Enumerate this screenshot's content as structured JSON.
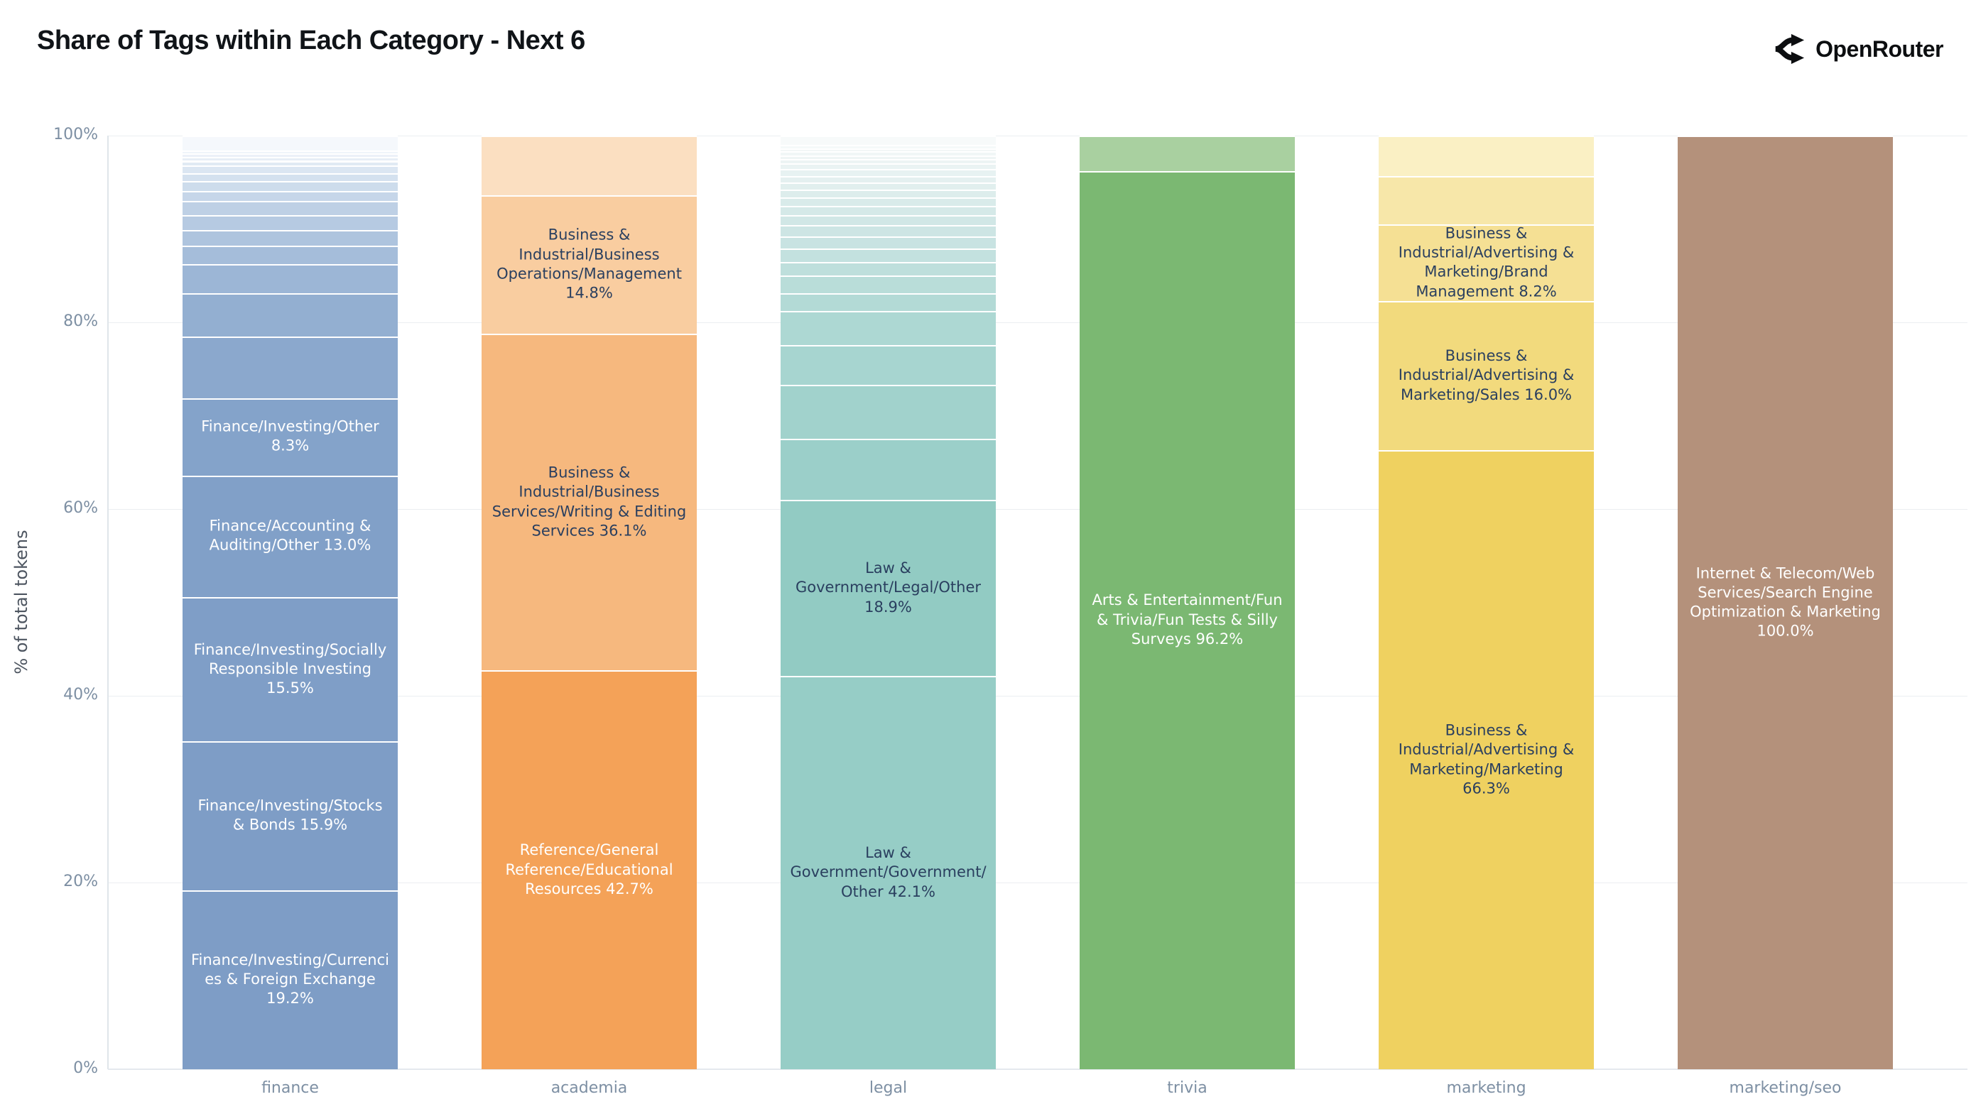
{
  "title": "Share of Tags within Each Category - Next 6",
  "logo": {
    "text": "OpenRouter",
    "icon": "openrouter-fork-icon"
  },
  "axis": {
    "y_label": "% of total tokens",
    "x_categories": [
      "finance",
      "academia",
      "legal",
      "trivia",
      "marketing",
      "marketing/seo"
    ]
  },
  "colors": {
    "background": "#ffffff",
    "grid": "#ebeef1",
    "tick_text": "#7d8fa3",
    "dark_label_text": "#2a3f5f",
    "light_label_text": "#ffffff",
    "finance_base": "#7E9DC6",
    "academia_base": "#F4A258",
    "legal_base": "#96CDC6",
    "trivia_base": "#7BB872",
    "marketing_base": "#EFD160",
    "marketing_seo_base": "#B4917B"
  },
  "chart_data": {
    "type": "bar",
    "stacked": true,
    "normalized": "percent",
    "title": "Share of Tags within Each Category - Next 6",
    "xlabel": "",
    "ylabel": "% of total tokens",
    "ylim": [
      0,
      100
    ],
    "grid": true,
    "legend": "none",
    "y_ticks": {
      "values": [
        0,
        20,
        40,
        60,
        80,
        100
      ],
      "labels": [
        "0%",
        "20%",
        "40%",
        "60%",
        "80%",
        "100%"
      ]
    },
    "categories": [
      "finance",
      "academia",
      "legal",
      "trivia",
      "marketing",
      "marketing/seo"
    ],
    "bars": [
      {
        "category": "finance",
        "segments": [
          {
            "value": 19.2,
            "label": "Finance/Investing/Currencies & Foreign Exchange 19.2%",
            "color": "#7E9DC6",
            "text_color": "#ffffff"
          },
          {
            "value": 15.9,
            "label": "Finance/Investing/Stocks & Bonds 15.9%",
            "color": "#7E9DC6",
            "text_color": "#ffffff"
          },
          {
            "value": 15.5,
            "label": "Finance/Investing/Socially Responsible Investing 15.5%",
            "color": "#7F9EC7",
            "text_color": "#ffffff"
          },
          {
            "value": 13.0,
            "label": "Finance/Accounting & Auditing/Other 13.0%",
            "color": "#81A0C8",
            "text_color": "#ffffff"
          },
          {
            "value": 8.3,
            "label": "Finance/Investing/Other 8.3%",
            "color": "#84A3CA",
            "text_color": "#ffffff"
          },
          {
            "value": 6.6,
            "label": "",
            "color": "#8BA8CD"
          },
          {
            "value": 4.6,
            "label": "",
            "color": "#93AFD1"
          },
          {
            "value": 3.1,
            "label": "",
            "color": "#9CB6D6"
          },
          {
            "value": 2.0,
            "label": "",
            "color": "#A5BDDA"
          },
          {
            "value": 1.7,
            "label": "",
            "color": "#AEC4DE"
          },
          {
            "value": 1.6,
            "label": "",
            "color": "#B6CAE2"
          },
          {
            "value": 1.5,
            "label": "",
            "color": "#BED0E5"
          },
          {
            "value": 1.1,
            "label": "",
            "color": "#C6D6E9"
          },
          {
            "value": 1.0,
            "label": "",
            "color": "#CDDCEC"
          },
          {
            "value": 0.9,
            "label": "",
            "color": "#D4E1EF"
          },
          {
            "value": 0.8,
            "label": "",
            "color": "#DBE6F2"
          },
          {
            "value": 0.5,
            "label": "",
            "color": "#E1EAF4"
          },
          {
            "value": 0.4,
            "label": "",
            "color": "#E7EEF6"
          },
          {
            "value": 0.4,
            "label": "",
            "color": "#ECF1F8"
          },
          {
            "value": 0.3,
            "label": "",
            "color": "#F0F4FA"
          },
          {
            "value": 1.6,
            "label": "",
            "color": "#F5F8FC"
          }
        ]
      },
      {
        "category": "academia",
        "segments": [
          {
            "value": 42.7,
            "label": "Reference/General Reference/Educational Resources 42.7%",
            "color": "#F4A258",
            "text_color": "#ffffff"
          },
          {
            "value": 36.1,
            "label": "Business & Industrial/Business Services/Writing & Editing Services 36.1%",
            "color": "#F6B87E",
            "text_color": "#2a3f5f"
          },
          {
            "value": 14.8,
            "label": "Business & Industrial/Business Operations/Management 14.8%",
            "color": "#F9CDA0",
            "text_color": "#2a3f5f"
          },
          {
            "value": 6.4,
            "label": "",
            "color": "#FBDFC1"
          }
        ]
      },
      {
        "category": "legal",
        "segments": [
          {
            "value": 42.1,
            "label": "Law & Government/Government/Other 42.1%",
            "color": "#96CDC6",
            "text_color": "#2a3f5f"
          },
          {
            "value": 18.9,
            "label": "Law & Government/Legal/Other 18.9%",
            "color": "#92CBC3",
            "text_color": "#2a3f5f"
          },
          {
            "value": 6.5,
            "label": "",
            "color": "#9BCFC9"
          },
          {
            "value": 5.8,
            "label": "",
            "color": "#A1D2CC"
          },
          {
            "value": 4.3,
            "label": "",
            "color": "#A7D5D0"
          },
          {
            "value": 3.6,
            "label": "",
            "color": "#ADD8D3"
          },
          {
            "value": 1.9,
            "label": "",
            "color": "#B3DAD6"
          },
          {
            "value": 1.9,
            "label": "",
            "color": "#B9DDD9"
          },
          {
            "value": 1.5,
            "label": "",
            "color": "#BEDFDC"
          },
          {
            "value": 1.4,
            "label": "",
            "color": "#C3E1DF"
          },
          {
            "value": 1.3,
            "label": "",
            "color": "#C8E3E2"
          },
          {
            "value": 1.2,
            "label": "",
            "color": "#CDE5E4"
          },
          {
            "value": 1.1,
            "label": "",
            "color": "#D1E7E6"
          },
          {
            "value": 1.0,
            "label": "",
            "color": "#D5E9E8"
          },
          {
            "value": 0.9,
            "label": "",
            "color": "#D9EBEA"
          },
          {
            "value": 0.8,
            "label": "",
            "color": "#DDEDEC"
          },
          {
            "value": 0.8,
            "label": "",
            "color": "#E1EFEE"
          },
          {
            "value": 0.7,
            "label": "",
            "color": "#E4F0F0"
          },
          {
            "value": 0.7,
            "label": "",
            "color": "#E7F2F2"
          },
          {
            "value": 0.6,
            "label": "",
            "color": "#EAF3F3"
          },
          {
            "value": 0.5,
            "label": "",
            "color": "#EDF4F4"
          },
          {
            "value": 0.4,
            "label": "",
            "color": "#EFF5F5"
          },
          {
            "value": 0.4,
            "label": "",
            "color": "#F1F6F6"
          },
          {
            "value": 0.35,
            "label": "",
            "color": "#F3F7F7"
          },
          {
            "value": 0.35,
            "label": "",
            "color": "#F5F9F9"
          },
          {
            "value": 1.0,
            "label": "",
            "color": "#F7FAFA"
          }
        ]
      },
      {
        "category": "trivia",
        "segments": [
          {
            "value": 96.2,
            "label": "Arts & Entertainment/Fun & Trivia/Fun Tests & Silly Surveys 96.2%",
            "color": "#7BB872",
            "text_color": "#ffffff"
          },
          {
            "value": 3.8,
            "label": "",
            "color": "#A9D0A0"
          }
        ]
      },
      {
        "category": "marketing",
        "segments": [
          {
            "value": 66.3,
            "label": "Business & Industrial/Advertising & Marketing/Marketing 66.3%",
            "color": "#EFD160",
            "text_color": "#2a3f5f"
          },
          {
            "value": 16.0,
            "label": "Business & Industrial/Advertising & Marketing/Sales 16.0%",
            "color": "#F2DA7D",
            "text_color": "#2a3f5f"
          },
          {
            "value": 8.2,
            "label": "Business & Industrial/Advertising & Marketing/Brand Management 8.2%",
            "color": "#F5E094",
            "text_color": "#2a3f5f"
          },
          {
            "value": 5.2,
            "label": "",
            "color": "#F7E7A9"
          },
          {
            "value": 4.3,
            "label": "",
            "color": "#FAF0C4"
          }
        ]
      },
      {
        "category": "marketing/seo",
        "segments": [
          {
            "value": 100.0,
            "label": "Internet & Telecom/Web Services/Search Engine Optimization & Marketing 100.0%",
            "color": "#B4917B",
            "text_color": "#ffffff"
          }
        ]
      }
    ]
  }
}
